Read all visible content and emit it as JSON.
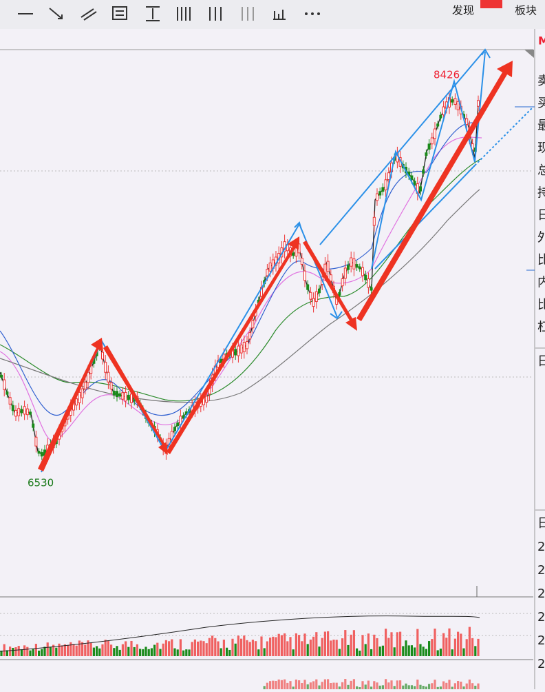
{
  "toolbar": {
    "tabs": [
      "发现",
      "板块"
    ]
  },
  "chart": {
    "high_label": "8426",
    "low_label": "6530"
  },
  "side_panel": {
    "header": "M",
    "rows": [
      "卖",
      "买",
      "最",
      "现",
      "总",
      "持",
      "日",
      "外",
      "比",
      "内",
      "比",
      "杠"
    ],
    "lower_header": "日",
    "lower_rows": [
      "日",
      "2",
      "2",
      "2",
      "2",
      "2",
      "2"
    ]
  }
}
